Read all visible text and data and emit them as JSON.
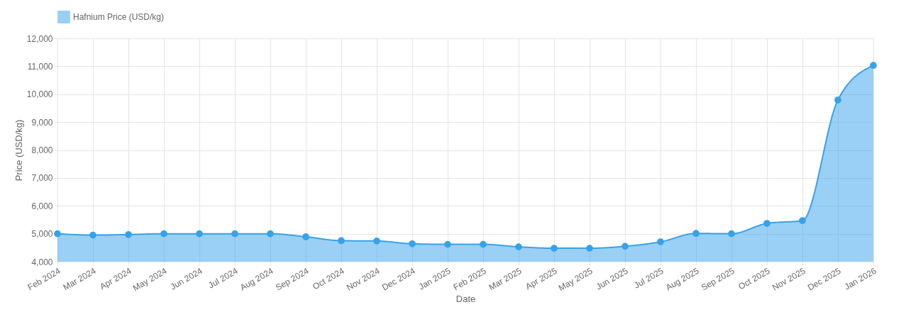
{
  "chart_data": {
    "type": "area",
    "xlabel": "Date",
    "ylabel": "Price (USD/kg)",
    "categories": [
      "Feb 2024",
      "Mar 2024",
      "Apr 2024",
      "May 2024",
      "Jun 2024",
      "Jul 2024",
      "Aug 2024",
      "Sep 2024",
      "Oct 2024",
      "Nov 2024",
      "Dec 2024",
      "Jan 2025",
      "Feb 2025",
      "Mar 2025",
      "Apr 2025",
      "May 2025",
      "Jun 2025",
      "Jul 2025",
      "Aug 2025",
      "Sep 2025",
      "Oct 2025",
      "Nov 2025",
      "Dec 2025",
      "Jan 2026"
    ],
    "series": [
      {
        "name": "Hafnium Price (USD/kg)",
        "color": "#36a2eb",
        "values": [
          5000,
          4950,
          4970,
          5000,
          5000,
          5000,
          5000,
          4890,
          4750,
          4740,
          4640,
          4620,
          4620,
          4530,
          4480,
          4480,
          4550,
          4710,
          5010,
          5000,
          5370,
          5470,
          9790,
          11030
        ]
      }
    ],
    "ylim": [
      4000,
      12000
    ],
    "yticks": [
      {
        "value": 4000,
        "label": "4,000"
      },
      {
        "value": 5000,
        "label": "5,000"
      },
      {
        "value": 6000,
        "label": "6,000"
      },
      {
        "value": 7000,
        "label": "7,000"
      },
      {
        "value": 8000,
        "label": "8,000"
      },
      {
        "value": 9000,
        "label": "9,000"
      },
      {
        "value": 10000,
        "label": "10,000"
      },
      {
        "value": 11000,
        "label": "11,000"
      },
      {
        "value": 12000,
        "label": "12,000"
      }
    ],
    "grid": true,
    "legend": "top",
    "marker": "circle",
    "line_style": "solid"
  }
}
